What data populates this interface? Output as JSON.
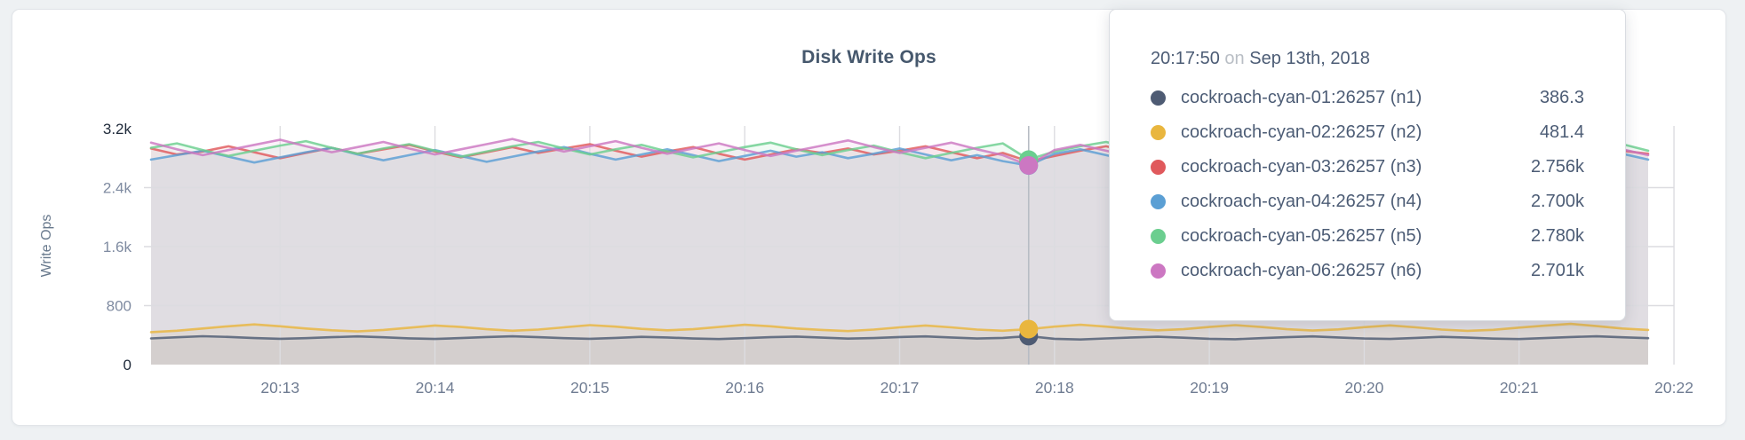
{
  "panel": {
    "title": "Disk Write Ops"
  },
  "tooltip": {
    "time": "20:17:50",
    "on_word": "on",
    "date": "Sep 13th, 2018",
    "hover_index": 34,
    "rows": [
      {
        "name": "cockroach-cyan-01:26257 (n1)",
        "value": "386.3",
        "color": "#4e5b73"
      },
      {
        "name": "cockroach-cyan-02:26257 (n2)",
        "value": "481.4",
        "color": "#e9b63e"
      },
      {
        "name": "cockroach-cyan-03:26257 (n3)",
        "value": "2.756k",
        "color": "#e0595c"
      },
      {
        "name": "cockroach-cyan-04:26257 (n4)",
        "value": "2.700k",
        "color": "#5b9fd4"
      },
      {
        "name": "cockroach-cyan-05:26257 (n5)",
        "value": "2.780k",
        "color": "#6bce8f"
      },
      {
        "name": "cockroach-cyan-06:26257 (n6)",
        "value": "2.701k",
        "color": "#cc77c2"
      }
    ]
  },
  "chart_data": {
    "type": "line",
    "title": "Disk Write Ops",
    "xlabel": "",
    "ylabel": "Write Ops",
    "ylim": [
      0,
      3200
    ],
    "grid": true,
    "legend_position": "tooltip",
    "x_start": "20:12:10",
    "x_interval_seconds": 10,
    "x_ticks": [
      "20:13",
      "20:14",
      "20:15",
      "20:16",
      "20:17",
      "20:18",
      "20:19",
      "20:20",
      "20:21",
      "20:22"
    ],
    "y_ticks": [
      {
        "label": "0",
        "value": 0,
        "dark": true
      },
      {
        "label": "800",
        "value": 800,
        "dark": false
      },
      {
        "label": "1.6k",
        "value": 1600,
        "dark": false
      },
      {
        "label": "2.4k",
        "value": 2400,
        "dark": false
      },
      {
        "label": "3.2k",
        "value": 3200,
        "dark": true
      }
    ],
    "series": [
      {
        "name": "cockroach-cyan-01:26257 (n1)",
        "color": "#4e5b73",
        "values": [
          355,
          370,
          385,
          375,
          360,
          350,
          358,
          372,
          382,
          370,
          356,
          348,
          360,
          374,
          384,
          372,
          358,
          350,
          362,
          376,
          368,
          354,
          346,
          358,
          372,
          380,
          366,
          352,
          360,
          374,
          382,
          368,
          354,
          362,
          386.3,
          350,
          340,
          355,
          368,
          378,
          364,
          350,
          344,
          358,
          372,
          382,
          368,
          354,
          348,
          362,
          376,
          366,
          352,
          346,
          360,
          374,
          384,
          370,
          358
        ]
      },
      {
        "name": "cockroach-cyan-02:26257 (n2)",
        "color": "#e9b63e",
        "values": [
          440,
          460,
          490,
          520,
          545,
          520,
          490,
          465,
          450,
          470,
          500,
          530,
          510,
          480,
          460,
          475,
          505,
          535,
          515,
          485,
          465,
          480,
          510,
          540,
          520,
          490,
          470,
          455,
          475,
          505,
          530,
          505,
          475,
          460,
          481.4,
          515,
          540,
          515,
          485,
          465,
          480,
          510,
          535,
          510,
          480,
          462,
          478,
          508,
          532,
          505,
          475,
          458,
          472,
          502,
          528,
          552,
          522,
          490,
          470
        ]
      },
      {
        "name": "cockroach-cyan-03:26257 (n3)",
        "color": "#e0595c",
        "values": [
          2930,
          2850,
          2890,
          2960,
          2880,
          2800,
          2870,
          2940,
          2860,
          2920,
          2980,
          2890,
          2810,
          2880,
          2950,
          2870,
          2930,
          2990,
          2900,
          2820,
          2890,
          2950,
          2860,
          2780,
          2850,
          2920,
          2870,
          2930,
          2850,
          2900,
          2960,
          2880,
          2800,
          2870,
          2756,
          2830,
          2900,
          2960,
          2880,
          2930,
          2990,
          2900,
          2820,
          2890,
          2950,
          2860,
          2780,
          2850,
          2910,
          2830,
          2890,
          2950,
          2870,
          2790,
          2860,
          2920,
          2840,
          2900,
          2860
        ]
      },
      {
        "name": "cockroach-cyan-04:26257 (n4)",
        "color": "#5b9fd4",
        "values": [
          2780,
          2840,
          2900,
          2820,
          2740,
          2810,
          2880,
          2940,
          2850,
          2770,
          2840,
          2910,
          2830,
          2750,
          2820,
          2890,
          2950,
          2860,
          2780,
          2850,
          2920,
          2840,
          2760,
          2830,
          2900,
          2820,
          2880,
          2800,
          2860,
          2930,
          2850,
          2770,
          2840,
          2760,
          2700,
          2860,
          2920,
          2840,
          2760,
          2830,
          2900,
          2810,
          2730,
          2800,
          2870,
          2930,
          2850,
          2770,
          2840,
          2910,
          2820,
          2740,
          2810,
          2880,
          2800,
          2720,
          2790,
          2860,
          2780
        ]
      },
      {
        "name": "cockroach-cyan-05:26257 (n5)",
        "color": "#6bce8f",
        "values": [
          2940,
          3000,
          2910,
          2830,
          2900,
          2970,
          3030,
          2940,
          2860,
          2930,
          2990,
          2900,
          2820,
          2890,
          2960,
          3020,
          2930,
          2850,
          2920,
          2980,
          2890,
          2810,
          2880,
          2950,
          3010,
          2920,
          2840,
          2910,
          2970,
          2880,
          2800,
          2870,
          2940,
          3000,
          2780,
          2890,
          2960,
          3020,
          2930,
          2850,
          2920,
          2980,
          2890,
          2810,
          2880,
          2950,
          3010,
          2920,
          2840,
          2910,
          2970,
          2880,
          2800,
          2870,
          2940,
          2860,
          2920,
          2990,
          2900
        ]
      },
      {
        "name": "cockroach-cyan-06:26257 (n6)",
        "color": "#cc77c2",
        "values": [
          3010,
          2920,
          2840,
          2910,
          2980,
          3050,
          2960,
          2880,
          2950,
          3020,
          2930,
          2850,
          2920,
          2990,
          3060,
          2970,
          2890,
          2960,
          3030,
          2940,
          2860,
          2930,
          3000,
          2910,
          2830,
          2900,
          2970,
          3040,
          2950,
          2870,
          2940,
          3010,
          2920,
          2840,
          2701,
          2910,
          2980,
          2900,
          2820,
          2890,
          2960,
          3030,
          2940,
          2860,
          2930,
          3000,
          2910,
          2830,
          2900,
          2970,
          2880,
          2810,
          2880,
          2950,
          3020,
          2930,
          2850,
          2920,
          2840
        ]
      }
    ],
    "style": {
      "grid_color": "#dcdce0",
      "axis_tick_color": "#7f8ba1",
      "axis_tick_dark_color": "#1f2a3a",
      "x_tick_color": "#6f7c92",
      "ylabel_color": "#67788c",
      "guideline_color": "#b7bcc4",
      "area_opacity": 0.085,
      "line_opacity": 0.82,
      "line_width": 2.6,
      "hover_dot_radius": 10.5
    }
  }
}
